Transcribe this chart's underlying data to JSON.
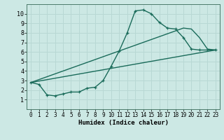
{
  "xlabel": "Humidex (Indice chaleur)",
  "background_color": "#cce8e4",
  "grid_color": "#b8d8d4",
  "line_color": "#1a6b5a",
  "xlim": [
    -0.5,
    23.5
  ],
  "ylim": [
    0,
    11
  ],
  "xticks": [
    0,
    1,
    2,
    3,
    4,
    5,
    6,
    7,
    8,
    9,
    10,
    11,
    12,
    13,
    14,
    15,
    16,
    17,
    18,
    19,
    20,
    21,
    22,
    23
  ],
  "yticks": [
    1,
    2,
    3,
    4,
    5,
    6,
    7,
    8,
    9,
    10
  ],
  "line1_x": [
    0,
    1,
    2,
    3,
    4,
    5,
    6,
    7,
    8,
    9,
    10,
    11,
    12,
    13,
    14,
    15,
    16,
    17,
    18,
    19,
    20,
    21,
    22,
    23
  ],
  "line1_y": [
    2.8,
    2.6,
    1.5,
    1.4,
    1.6,
    1.8,
    1.8,
    2.2,
    2.3,
    3.0,
    4.5,
    6.1,
    8.0,
    10.3,
    10.4,
    10.0,
    9.1,
    8.5,
    8.4,
    7.5,
    6.3,
    6.2,
    6.2,
    6.2
  ],
  "line2_x": [
    0,
    23
  ],
  "line2_y": [
    2.8,
    6.2
  ],
  "line3_x": [
    0,
    19,
    20,
    21,
    22,
    23
  ],
  "line3_y": [
    2.8,
    8.5,
    8.4,
    7.5,
    6.3,
    6.2
  ],
  "marker_size": 3.0,
  "line_width": 1.0,
  "tick_fontsize": 5.5,
  "xlabel_fontsize": 6.5
}
